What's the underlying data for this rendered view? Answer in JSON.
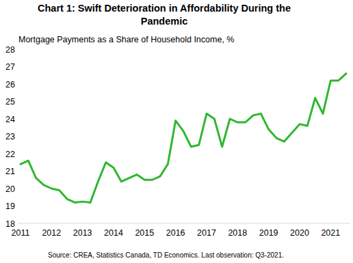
{
  "chart_data": {
    "type": "line",
    "title": "Chart 1: Swift Deterioration in Affordability  During the Pandemic",
    "subtitle": "Mortgage Payments as a Share of Household Income, %",
    "source": "Source:  CREA,  Statistics Canada,  TD Economics.  Last observation:  Q3-2021.",
    "categories": [
      "2011",
      null,
      null,
      null,
      "2012",
      null,
      null,
      null,
      "2013",
      null,
      null,
      null,
      "2014",
      null,
      null,
      null,
      "2015",
      null,
      null,
      null,
      "2016",
      null,
      null,
      null,
      "2017",
      null,
      null,
      null,
      "2018",
      null,
      null,
      null,
      "2019",
      null,
      null,
      null,
      "2020",
      null,
      null,
      null,
      "2021",
      null,
      null
    ],
    "values": [
      21.4,
      21.6,
      20.6,
      20.2,
      20.0,
      19.9,
      19.4,
      19.2,
      19.25,
      19.2,
      20.4,
      21.5,
      21.2,
      20.4,
      20.6,
      20.8,
      20.5,
      20.5,
      20.7,
      21.4,
      23.9,
      23.3,
      22.4,
      22.5,
      24.3,
      24.0,
      22.4,
      24.0,
      23.8,
      23.8,
      24.2,
      24.3,
      23.4,
      22.9,
      22.7,
      23.2,
      23.7,
      23.6,
      25.2,
      24.3,
      26.2,
      26.2,
      26.6
    ],
    "color": "#2eb82e",
    "ylim": [
      18,
      28
    ],
    "yticks": [
      18,
      19,
      20,
      21,
      22,
      23,
      24,
      25,
      26,
      27,
      28
    ],
    "grid": false
  }
}
